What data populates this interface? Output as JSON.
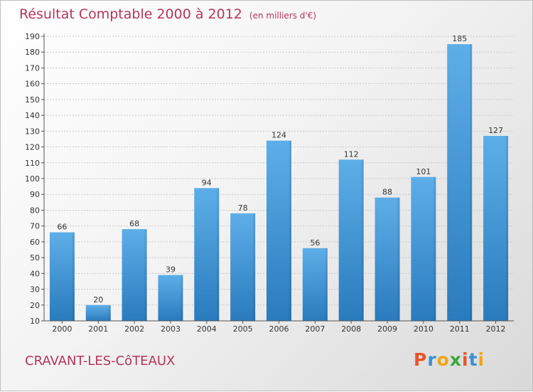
{
  "header": {
    "title": "Résultat Comptable 2000 à 2012",
    "subtitle": "(en milliers d'€)"
  },
  "footer": {
    "commune": "CRAVANT-LES-CôTEAUX",
    "logo_text": "Proxiti",
    "logo_colors": [
      "#e8542c",
      "#3a8fd1",
      "#f2a516",
      "#3aa83a",
      "#e8542c",
      "#3a8fd1",
      "#f2a516"
    ]
  },
  "chart_data": {
    "type": "bar",
    "categories": [
      "2000",
      "2001",
      "2002",
      "2003",
      "2004",
      "2005",
      "2006",
      "2007",
      "2008",
      "2009",
      "2010",
      "2011",
      "2012"
    ],
    "values": [
      66,
      20,
      68,
      39,
      94,
      78,
      124,
      56,
      112,
      88,
      101,
      185,
      127
    ],
    "ylim": [
      10,
      190
    ],
    "yticks": [
      10,
      20,
      30,
      40,
      50,
      60,
      70,
      80,
      90,
      100,
      110,
      120,
      130,
      140,
      150,
      160,
      170,
      180,
      190
    ],
    "grid": true,
    "bar_color_top": "#5daee8",
    "bar_color_bottom": "#2a7bbd"
  }
}
